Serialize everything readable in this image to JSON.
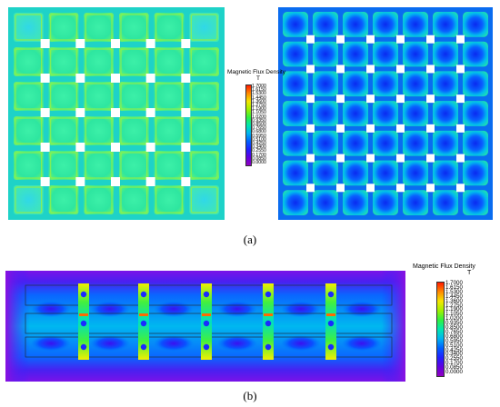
{
  "panel_a": {
    "caption": "(a)",
    "legend": {
      "title": "Magnetic Flux Density",
      "unit": "T",
      "ticks": [
        "1.7000",
        "1.6150",
        "1.5300",
        "1.4450",
        "1.3600",
        "1.2750",
        "1.1900",
        "1.1050",
        "1.0200",
        "0.9350",
        "0.8500",
        "0.7650",
        "0.6800",
        "0.5950",
        "0.5100",
        "0.4250",
        "0.3400",
        "0.2550",
        "0.1700",
        "0.0850",
        "0.0000"
      ]
    }
  },
  "panel_b": {
    "caption": "(b)",
    "legend": {
      "title": "Magnetic Flux Density",
      "unit": "T",
      "ticks": [
        "1.7000",
        "1.6150",
        "1.5300",
        "1.4450",
        "1.3600",
        "1.2750",
        "1.1900",
        "1.1050",
        "1.0200",
        "0.9350",
        "0.8500",
        "0.7650",
        "0.6800",
        "0.5950",
        "0.5100",
        "0.4250",
        "0.3400",
        "0.2550",
        "0.1700",
        "0.0850",
        "0.0000"
      ]
    }
  },
  "colors": {
    "scale": [
      "#ff1a00",
      "#ff6a00",
      "#ffb400",
      "#f0f000",
      "#a8f000",
      "#3cf03c",
      "#00e6a0",
      "#00c8e6",
      "#0096ff",
      "#0050ff",
      "#1a1aff",
      "#5a00e0",
      "#8a00c0"
    ]
  }
}
